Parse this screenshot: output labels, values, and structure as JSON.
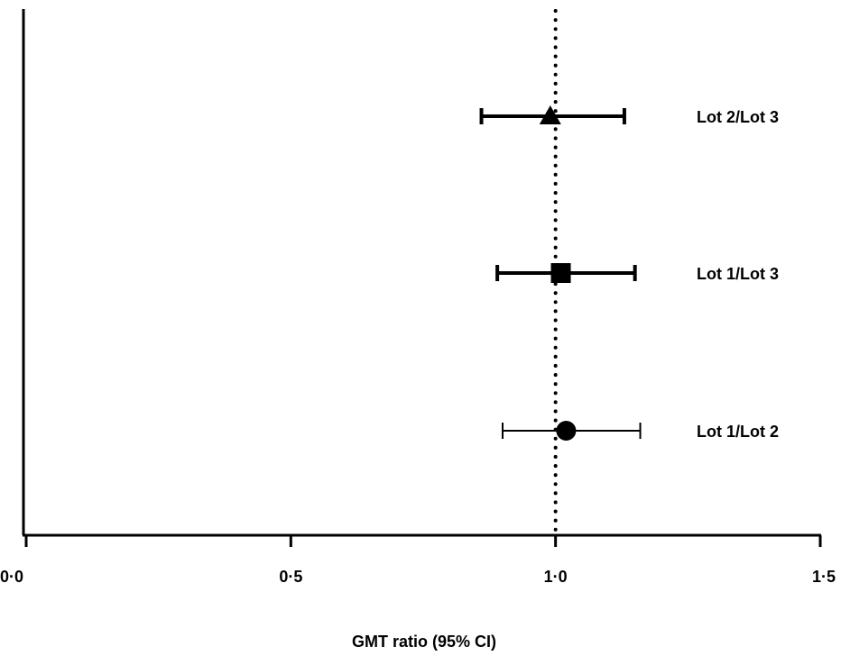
{
  "chart_data": {
    "type": "scatter",
    "subtype": "forest-plot",
    "xlabel": "GMT ratio (95% CI)",
    "xlim": [
      0,
      1.5
    ],
    "xticks": [
      0,
      0.5,
      1.0,
      1.5
    ],
    "xtick_labels": [
      "0·0",
      "0·5",
      "1·0",
      "1·5"
    ],
    "reference_line": {
      "x": 1.0,
      "style": "dotted"
    },
    "grid": false,
    "legend": "none",
    "series": [
      {
        "name": "Lot 2/Lot 3",
        "marker": "triangle",
        "estimate": 0.99,
        "ci_low": 0.86,
        "ci_high": 1.13
      },
      {
        "name": "Lot 1/Lot 3",
        "marker": "square",
        "estimate": 1.01,
        "ci_low": 0.89,
        "ci_high": 1.15
      },
      {
        "name": "Lot 1/Lot 2",
        "marker": "circle",
        "estimate": 1.02,
        "ci_low": 0.9,
        "ci_high": 1.16
      }
    ],
    "colors": {
      "ink": "#000000",
      "background": "#ffffff"
    }
  }
}
